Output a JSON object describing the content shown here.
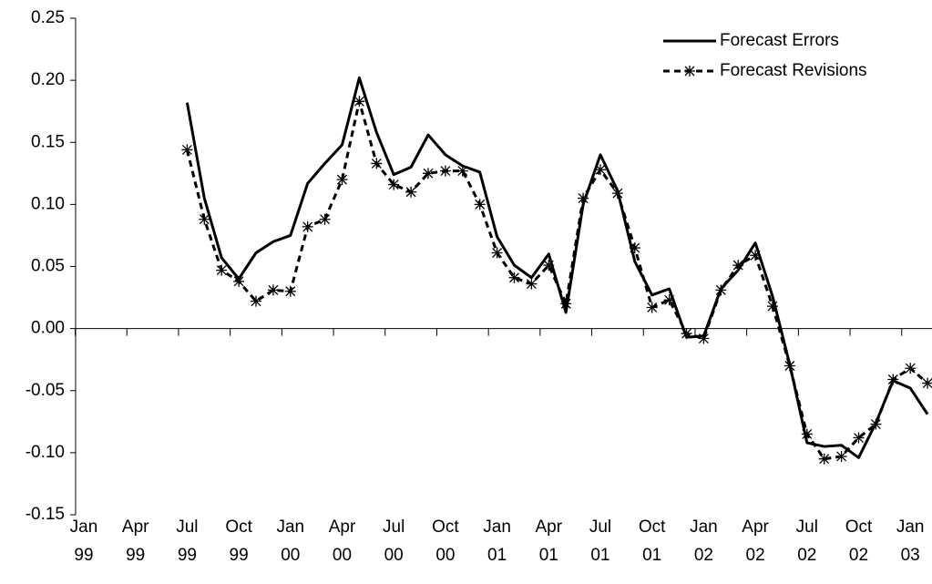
{
  "chart_data": {
    "type": "line",
    "categories": [
      "Jan 99",
      null,
      null,
      "Apr 99",
      null,
      null,
      "Jul 99",
      null,
      null,
      "Oct 99",
      null,
      null,
      "Jan 00",
      null,
      null,
      "Apr 00",
      null,
      null,
      "Jul 00",
      null,
      null,
      "Oct 00",
      null,
      null,
      "Jan 01",
      null,
      null,
      "Apr 01",
      null,
      null,
      "Jul 01",
      null,
      null,
      "Oct 01",
      null,
      null,
      "Jan 02",
      null,
      null,
      "Apr 02",
      null,
      null,
      "Jul 02",
      null,
      null,
      "Oct 02",
      null,
      null,
      "Jan 03",
      null
    ],
    "series": [
      {
        "name": "Forecast Errors",
        "color": "#000000",
        "dashed": false,
        "markers": false,
        "values": [
          null,
          null,
          null,
          null,
          null,
          null,
          0.182,
          0.105,
          0.057,
          0.04,
          0.061,
          0.07,
          0.075,
          0.117,
          0.133,
          0.148,
          0.202,
          0.158,
          0.124,
          0.13,
          0.156,
          0.14,
          0.131,
          0.126,
          0.074,
          0.051,
          0.041,
          0.06,
          0.013,
          0.1,
          0.14,
          0.111,
          0.054,
          0.027,
          0.032,
          -0.007,
          -0.006,
          0.032,
          0.047,
          0.069,
          0.026,
          -0.029,
          -0.092,
          -0.095,
          -0.094,
          -0.104,
          -0.076,
          -0.042,
          -0.048,
          -0.069
        ]
      },
      {
        "name": "Forecast Revisions",
        "color": "#000000",
        "dashed": true,
        "markers": true,
        "values": [
          null,
          null,
          null,
          null,
          null,
          null,
          0.144,
          0.088,
          0.047,
          0.038,
          0.022,
          0.031,
          0.03,
          0.082,
          0.088,
          0.12,
          0.183,
          0.133,
          0.116,
          0.11,
          0.125,
          0.127,
          0.127,
          0.1,
          0.061,
          0.041,
          0.036,
          0.051,
          0.02,
          0.105,
          0.128,
          0.109,
          0.065,
          0.017,
          0.023,
          -0.004,
          -0.008,
          0.031,
          0.051,
          0.059,
          0.018,
          -0.03,
          -0.085,
          -0.105,
          -0.103,
          -0.088,
          -0.077,
          -0.041,
          -0.032,
          -0.044
        ]
      }
    ],
    "ylim": [
      -0.15,
      0.25
    ],
    "yticks": [
      {
        "value": -0.15,
        "label": "-0.15"
      },
      {
        "value": -0.1,
        "label": "-0.10"
      },
      {
        "value": -0.05,
        "label": "-0.05"
      },
      {
        "value": 0,
        "label": "0.00"
      },
      {
        "value": 0.05,
        "label": "0.05"
      },
      {
        "value": 0.1,
        "label": "0.10"
      },
      {
        "value": 0.15,
        "label": "0.15"
      },
      {
        "value": 0.2,
        "label": "0.20"
      },
      {
        "value": 0.25,
        "label": "0.25"
      }
    ],
    "legend": "top-right"
  }
}
